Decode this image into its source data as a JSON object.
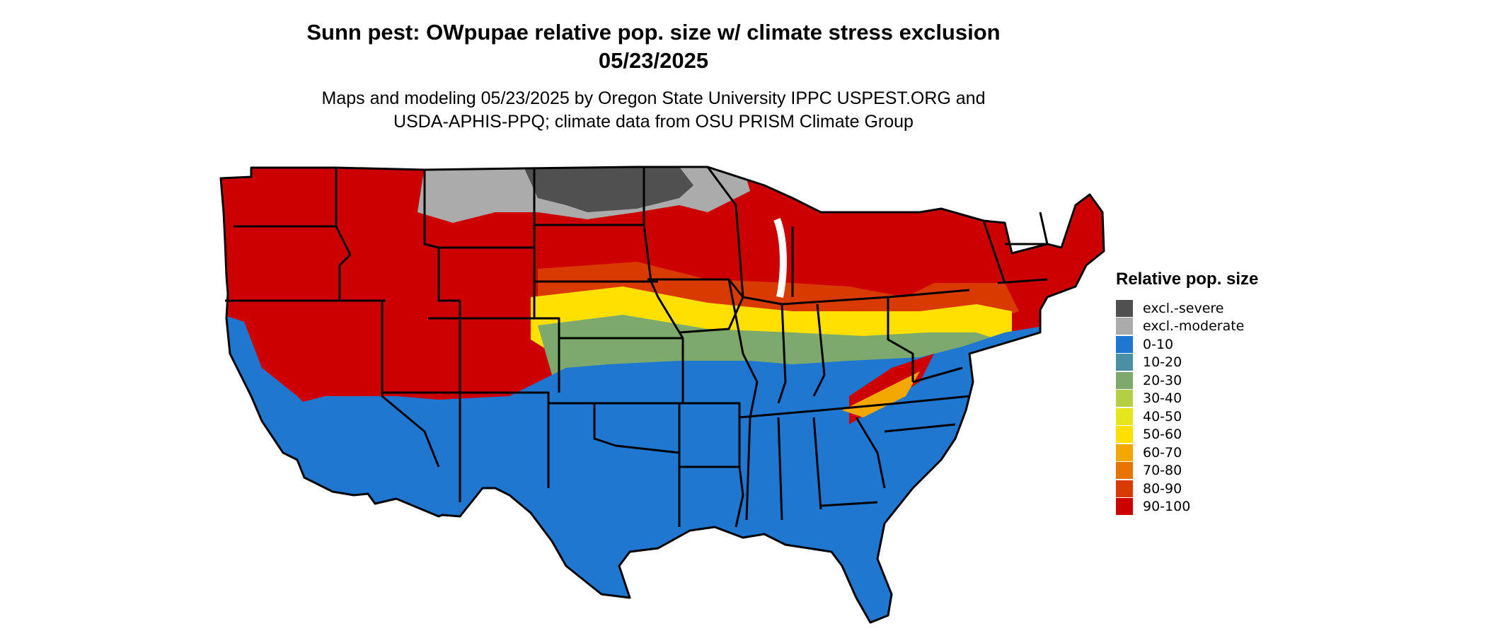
{
  "title": {
    "line1": "Sunn pest: OWpupae relative pop. size w/ climate stress exclusion",
    "line2": "05/23/2025"
  },
  "subtitle": {
    "line1": "Maps and modeling 05/23/2025 by Oregon State University IPPC USPEST.ORG and",
    "line2": "USDA-APHIS-PPQ; climate data from OSU PRISM Climate Group"
  },
  "legend": {
    "title": "Relative pop. size",
    "items": [
      {
        "label": "excl.-severe",
        "color": "#505050"
      },
      {
        "label": "excl.-moderate",
        "color": "#ababab"
      },
      {
        "label": "0-10",
        "color": "#1f77d0"
      },
      {
        "label": "10-20",
        "color": "#4b8fa4"
      },
      {
        "label": "20-30",
        "color": "#7daa6c"
      },
      {
        "label": "30-40",
        "color": "#b5cf45"
      },
      {
        "label": "40-50",
        "color": "#e5e61c"
      },
      {
        "label": "50-60",
        "color": "#ffe000"
      },
      {
        "label": "60-70",
        "color": "#f3a800"
      },
      {
        "label": "70-80",
        "color": "#e77400"
      },
      {
        "label": "80-90",
        "color": "#d93a00"
      },
      {
        "label": "90-100",
        "color": "#cc0000"
      }
    ]
  }
}
